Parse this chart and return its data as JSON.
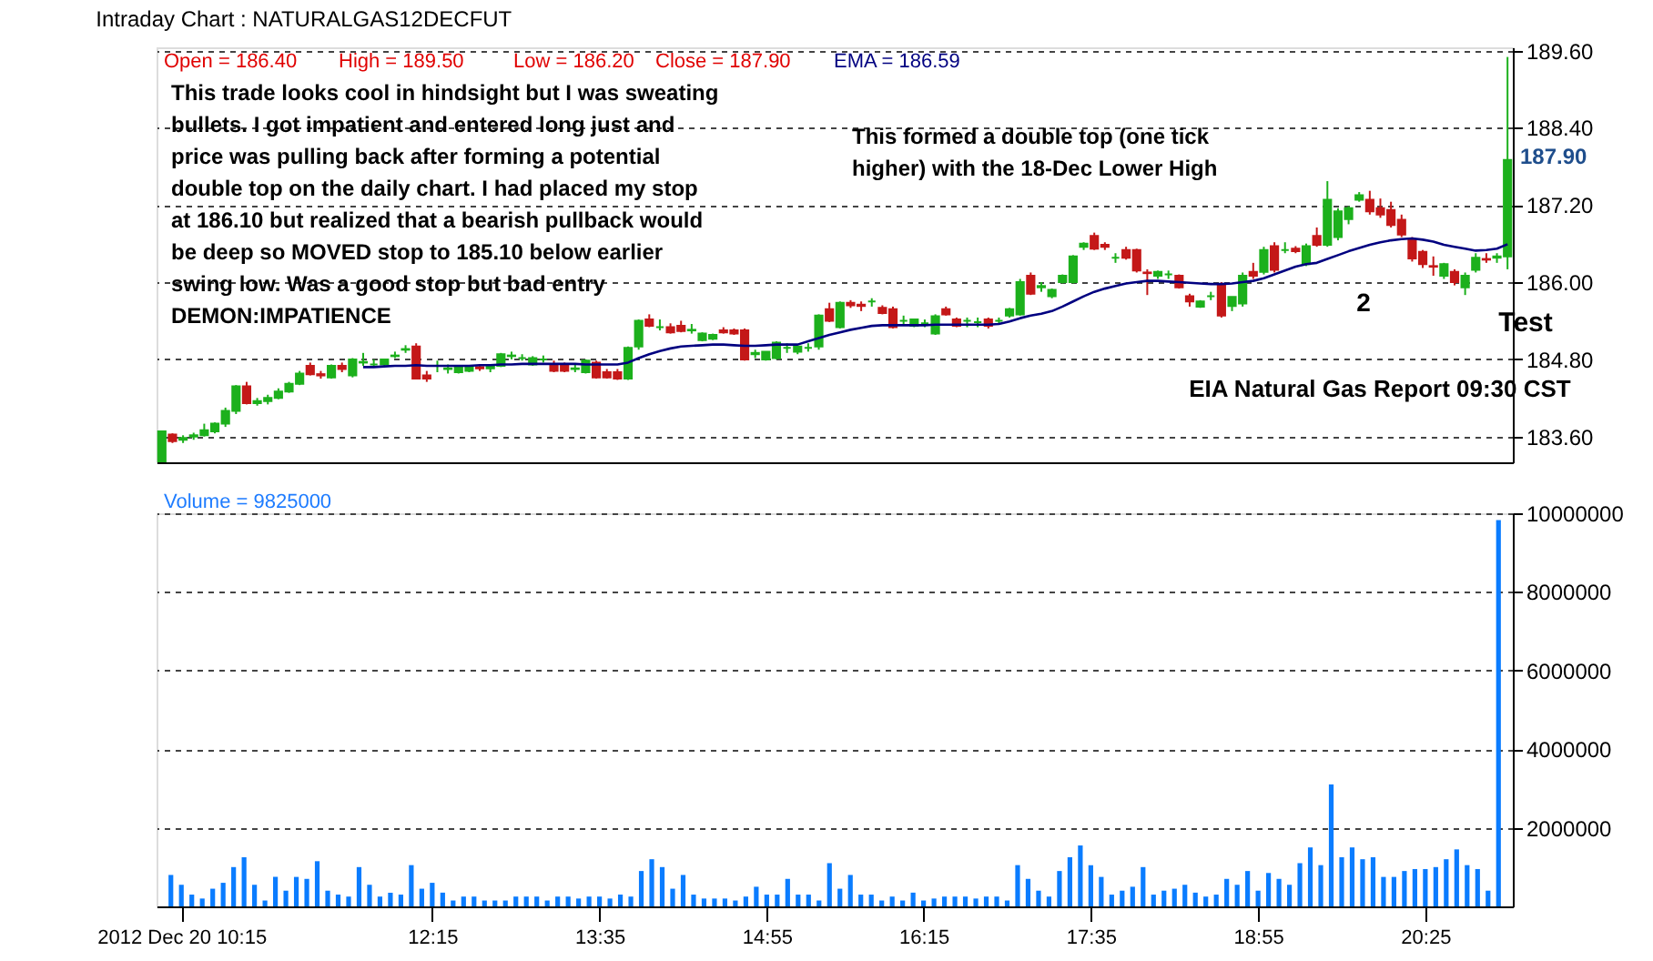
{
  "chart_data": [
    {
      "type": "candlestick",
      "title": "Intraday Chart : NATURALGAS12DECFUT",
      "ohlc": [
        [
          183.21,
          183.68,
          183.2,
          183.68
        ],
        [
          183.63,
          183.65,
          183.5,
          183.53
        ],
        [
          183.55,
          183.62,
          183.5,
          183.58
        ],
        [
          183.6,
          183.66,
          183.55,
          183.62
        ],
        [
          183.62,
          183.8,
          183.6,
          183.7
        ],
        [
          183.68,
          183.82,
          183.65,
          183.8
        ],
        [
          183.8,
          184.05,
          183.75,
          184.0
        ],
        [
          184.0,
          184.4,
          183.95,
          184.38
        ],
        [
          184.38,
          184.45,
          184.1,
          184.12
        ],
        [
          184.12,
          184.2,
          184.08,
          184.15
        ],
        [
          184.15,
          184.25,
          184.1,
          184.2
        ],
        [
          184.2,
          184.35,
          184.18,
          184.3
        ],
        [
          184.3,
          184.45,
          184.28,
          184.42
        ],
        [
          184.42,
          184.62,
          184.4,
          184.58
        ],
        [
          184.7,
          184.75,
          184.55,
          184.57
        ],
        [
          184.57,
          184.62,
          184.5,
          184.55
        ],
        [
          184.52,
          184.72,
          184.5,
          184.7
        ],
        [
          184.7,
          184.75,
          184.6,
          184.65
        ],
        [
          184.55,
          184.82,
          184.52,
          184.8
        ],
        [
          184.75,
          184.9,
          184.7,
          184.76
        ],
        [
          184.72,
          184.8,
          184.68,
          184.72
        ],
        [
          184.72,
          184.8,
          184.7,
          184.8
        ],
        [
          184.85,
          184.92,
          184.82,
          184.86
        ],
        [
          184.95,
          185.02,
          184.9,
          184.96
        ],
        [
          185.0,
          185.05,
          184.5,
          184.5
        ],
        [
          184.55,
          184.62,
          184.45,
          184.5
        ],
        [
          184.7,
          184.78,
          184.6,
          184.7
        ],
        [
          184.65,
          184.72,
          184.58,
          184.66
        ],
        [
          184.6,
          184.7,
          184.58,
          184.68
        ],
        [
          184.62,
          184.7,
          184.6,
          184.7
        ],
        [
          184.68,
          184.72,
          184.62,
          184.66
        ],
        [
          184.66,
          184.72,
          184.6,
          184.7
        ],
        [
          184.7,
          184.9,
          184.68,
          184.88
        ],
        [
          184.85,
          184.92,
          184.8,
          184.86
        ],
        [
          184.82,
          184.88,
          184.78,
          184.82
        ],
        [
          184.72,
          184.85,
          184.7,
          184.82
        ],
        [
          184.8,
          184.86,
          184.75,
          184.8
        ],
        [
          184.72,
          184.78,
          184.6,
          184.62
        ],
        [
          184.7,
          184.75,
          184.6,
          184.62
        ],
        [
          184.65,
          184.72,
          184.6,
          184.66
        ],
        [
          184.6,
          184.8,
          184.58,
          184.78
        ],
        [
          184.75,
          184.78,
          184.5,
          184.52
        ],
        [
          184.6,
          184.65,
          184.5,
          184.52
        ],
        [
          184.6,
          184.65,
          184.48,
          184.5
        ],
        [
          184.5,
          185.0,
          184.48,
          184.98
        ],
        [
          185.0,
          185.42,
          184.95,
          185.4
        ],
        [
          185.42,
          185.5,
          185.3,
          185.32
        ],
        [
          185.3,
          185.42,
          185.25,
          185.3
        ],
        [
          185.3,
          185.36,
          185.2,
          185.22
        ],
        [
          185.32,
          185.4,
          185.22,
          185.24
        ],
        [
          185.25,
          185.35,
          185.2,
          185.26
        ],
        [
          185.1,
          185.22,
          185.08,
          185.2
        ],
        [
          185.12,
          185.2,
          185.1,
          185.18
        ],
        [
          185.25,
          185.3,
          185.2,
          185.22
        ],
        [
          185.25,
          185.28,
          185.18,
          185.2
        ],
        [
          185.25,
          185.28,
          184.78,
          184.8
        ],
        [
          184.88,
          184.95,
          184.82,
          184.9
        ],
        [
          184.8,
          184.92,
          184.78,
          184.92
        ],
        [
          184.82,
          185.08,
          184.8,
          185.06
        ],
        [
          184.98,
          185.05,
          184.9,
          184.98
        ],
        [
          184.92,
          185.02,
          184.88,
          185.0
        ],
        [
          184.98,
          185.05,
          184.92,
          184.98
        ],
        [
          185.0,
          185.5,
          184.95,
          185.48
        ],
        [
          185.58,
          185.68,
          185.38,
          185.4
        ],
        [
          185.3,
          185.7,
          185.28,
          185.68
        ],
        [
          185.68,
          185.72,
          185.6,
          185.64
        ],
        [
          185.65,
          185.7,
          185.55,
          185.63
        ],
        [
          185.7,
          185.75,
          185.62,
          185.7
        ],
        [
          185.6,
          185.64,
          185.5,
          185.52
        ],
        [
          185.58,
          185.62,
          185.28,
          185.3
        ],
        [
          185.4,
          185.48,
          185.35,
          185.4
        ],
        [
          185.32,
          185.42,
          185.3,
          185.42
        ],
        [
          185.36,
          185.42,
          185.3,
          185.36
        ],
        [
          185.2,
          185.5,
          185.18,
          185.47
        ],
        [
          185.58,
          185.62,
          185.48,
          185.5
        ],
        [
          185.42,
          185.45,
          185.3,
          185.32
        ],
        [
          185.4,
          185.45,
          185.3,
          185.4
        ],
        [
          185.38,
          185.45,
          185.3,
          185.38
        ],
        [
          185.42,
          185.45,
          185.28,
          185.32
        ],
        [
          185.4,
          185.45,
          185.35,
          185.4
        ],
        [
          185.48,
          185.6,
          185.45,
          185.58
        ],
        [
          185.5,
          186.05,
          185.48,
          186.0
        ],
        [
          186.1,
          186.15,
          185.8,
          185.82
        ],
        [
          185.92,
          186.0,
          185.85,
          185.94
        ],
        [
          185.78,
          185.9,
          185.75,
          185.88
        ],
        [
          186.0,
          186.12,
          185.98,
          186.1
        ],
        [
          186.0,
          186.42,
          185.98,
          186.4
        ],
        [
          186.55,
          186.62,
          186.5,
          186.6
        ],
        [
          186.72,
          186.77,
          186.5,
          186.52
        ],
        [
          186.58,
          186.62,
          186.5,
          186.55
        ],
        [
          186.38,
          186.45,
          186.3,
          186.38
        ],
        [
          186.5,
          186.55,
          186.35,
          186.38
        ],
        [
          186.5,
          186.52,
          186.15,
          186.18
        ],
        [
          186.15,
          186.2,
          185.8,
          186.14
        ],
        [
          186.1,
          186.18,
          186.05,
          186.16
        ],
        [
          186.12,
          186.18,
          186.05,
          186.12
        ],
        [
          186.1,
          186.12,
          185.9,
          185.92
        ],
        [
          185.78,
          185.82,
          185.62,
          185.7
        ],
        [
          185.62,
          185.72,
          185.6,
          185.7
        ],
        [
          185.78,
          185.85,
          185.72,
          185.78
        ],
        [
          185.95,
          186.0,
          185.45,
          185.48
        ],
        [
          185.63,
          185.77,
          185.55,
          185.77
        ],
        [
          185.67,
          186.15,
          185.62,
          186.1
        ],
        [
          186.16,
          186.3,
          186.05,
          186.1
        ],
        [
          186.16,
          186.55,
          186.12,
          186.5
        ],
        [
          186.56,
          186.62,
          186.15,
          186.19
        ],
        [
          186.5,
          186.62,
          186.45,
          186.5
        ],
        [
          186.52,
          186.56,
          186.45,
          186.48
        ],
        [
          186.28,
          186.6,
          186.25,
          186.56
        ],
        [
          186.72,
          186.85,
          186.55,
          186.58
        ],
        [
          186.58,
          187.57,
          186.55,
          187.28
        ],
        [
          186.7,
          187.15,
          186.65,
          187.1
        ],
        [
          186.98,
          187.18,
          186.9,
          187.15
        ],
        [
          187.28,
          187.4,
          187.25,
          187.35
        ],
        [
          187.28,
          187.42,
          187.05,
          187.1
        ],
        [
          187.15,
          187.3,
          187.0,
          187.05
        ],
        [
          187.12,
          187.25,
          186.85,
          186.89
        ],
        [
          186.97,
          187.05,
          186.7,
          186.74
        ],
        [
          186.65,
          186.7,
          186.32,
          186.37
        ],
        [
          186.47,
          186.5,
          186.22,
          186.28
        ],
        [
          186.25,
          186.4,
          186.1,
          186.24
        ],
        [
          186.1,
          186.3,
          186.05,
          186.28
        ],
        [
          186.16,
          186.2,
          185.95,
          186.0
        ],
        [
          185.92,
          186.15,
          185.8,
          186.1
        ],
        [
          186.19,
          186.45,
          186.15,
          186.38
        ],
        [
          186.35,
          186.45,
          186.3,
          186.36
        ],
        [
          186.38,
          186.45,
          186.3,
          186.4
        ],
        [
          186.4,
          189.5,
          186.2,
          187.9
        ]
      ],
      "colors": [
        "#1cb01c",
        "#c41818",
        "#1cb01c",
        "#1cb01c",
        "#1cb01c",
        "#1cb01c",
        "#1cb01c",
        "#1cb01c",
        "#c41818",
        "#1cb01c",
        "#1cb01c",
        "#1cb01c",
        "#1cb01c",
        "#1cb01c",
        "#c41818",
        "#c41818",
        "#1cb01c",
        "#c41818",
        "#1cb01c",
        "#1cb01c",
        "#1cb01c",
        "#1cb01c",
        "#1cb01c",
        "#1cb01c",
        "#c41818",
        "#c41818",
        "#1cb01c",
        "#1cb01c",
        "#1cb01c",
        "#1cb01c",
        "#c41818",
        "#1cb01c",
        "#1cb01c",
        "#1cb01c",
        "#1cb01c",
        "#1cb01c",
        "#1cb01c",
        "#c41818",
        "#c41818",
        "#1cb01c",
        "#1cb01c",
        "#c41818",
        "#c41818",
        "#c41818",
        "#1cb01c",
        "#1cb01c",
        "#c41818",
        "#1cb01c",
        "#c41818",
        "#c41818",
        "#1cb01c",
        "#1cb01c",
        "#1cb01c",
        "#c41818",
        "#c41818",
        "#c41818",
        "#1cb01c",
        "#1cb01c",
        "#1cb01c",
        "#1cb01c",
        "#1cb01c",
        "#1cb01c",
        "#1cb01c",
        "#c41818",
        "#1cb01c",
        "#c41818",
        "#c41818",
        "#1cb01c",
        "#c41818",
        "#c41818",
        "#1cb01c",
        "#1cb01c",
        "#1cb01c",
        "#1cb01c",
        "#c41818",
        "#c41818",
        "#1cb01c",
        "#1cb01c",
        "#c41818",
        "#1cb01c",
        "#1cb01c",
        "#1cb01c",
        "#c41818",
        "#1cb01c",
        "#1cb01c",
        "#1cb01c",
        "#1cb01c",
        "#1cb01c",
        "#c41818",
        "#c41818",
        "#1cb01c",
        "#c41818",
        "#c41818",
        "#c41818",
        "#1cb01c",
        "#1cb01c",
        "#c41818",
        "#c41818",
        "#1cb01c",
        "#1cb01c",
        "#c41818",
        "#1cb01c",
        "#1cb01c",
        "#c41818",
        "#1cb01c",
        "#c41818",
        "#1cb01c",
        "#c41818",
        "#1cb01c",
        "#c41818",
        "#1cb01c",
        "#1cb01c",
        "#1cb01c",
        "#1cb01c",
        "#c41818",
        "#c41818",
        "#c41818",
        "#c41818",
        "#c41818",
        "#c41818",
        "#c41818",
        "#1cb01c",
        "#c41818",
        "#1cb01c",
        "#1cb01c",
        "#c41818",
        "#1cb01c",
        "#1cb01c"
      ],
      "series": [
        {
          "type": "line",
          "color": "#000080",
          "values": [
            null,
            null,
            null,
            null,
            null,
            null,
            null,
            null,
            null,
            null,
            null,
            null,
            null,
            null,
            null,
            null,
            null,
            null,
            null,
            184.68,
            184.68,
            184.69,
            184.7,
            184.7,
            184.71,
            184.7,
            184.7,
            184.7,
            184.7,
            184.7,
            184.71,
            184.71,
            184.72,
            184.72,
            184.73,
            184.73,
            184.73,
            184.73,
            184.73,
            184.73,
            184.72,
            184.72,
            184.72,
            184.72,
            184.75,
            184.82,
            184.88,
            184.93,
            184.97,
            185.0,
            185.01,
            185.02,
            185.03,
            185.03,
            185.02,
            185.01,
            185.01,
            185.02,
            185.03,
            185.03,
            185.03,
            185.08,
            185.13,
            185.18,
            185.22,
            185.26,
            185.29,
            185.32,
            185.33,
            185.33,
            185.33,
            185.33,
            185.33,
            185.34,
            185.34,
            185.34,
            185.34,
            185.34,
            185.34,
            185.35,
            185.39,
            185.44,
            185.48,
            185.51,
            185.55,
            185.62,
            185.7,
            185.78,
            185.85,
            185.9,
            185.94,
            185.98,
            186.0,
            186.02,
            186.02,
            186.01,
            186.0,
            185.99,
            185.98,
            185.97,
            185.97,
            185.98,
            186.0,
            186.02,
            186.06,
            186.12,
            186.18,
            186.24,
            186.28,
            186.3,
            186.36,
            186.42,
            186.48,
            186.53,
            186.58,
            186.62,
            186.65,
            186.67,
            186.68,
            186.66,
            186.63,
            186.58,
            186.55,
            186.52,
            186.49,
            186.5,
            186.52,
            186.59
          ]
        }
      ],
      "ylim": [
        183.2,
        189.65
      ],
      "yticks": [
        {
          "value": 183.6,
          "label": "183.60"
        },
        {
          "value": 184.8,
          "label": "184.80"
        },
        {
          "value": 186,
          "label": "186.00"
        },
        {
          "value": 187.2,
          "label": "187.20"
        },
        {
          "value": 188.4,
          "label": "188.40"
        },
        {
          "value": 189.6,
          "label": "189.60"
        }
      ],
      "grid": "y",
      "tick_labels": "y",
      "annotations": [
        "Open = 186.40",
        "High = 189.50",
        "Low = 186.20",
        "Close = 187.90",
        "EMA = 186.59",
        "This trade looks cool in hindsight but I was sweating\nbullets. I got impatient and entered long just and\nprice was pulling back after forming a potential\ndouble top on the daily chart. I had placed my stop\nat 186.10 but realized that a bearish pullback would\nbe deep so MOVED stop to 185.10 below earlier\nswing low. Was a good stop but bad entry\nDEMON:IMPATIENCE",
        "This formed a double top (one tick\nhigher) with the 18-Dec Lower High",
        "2",
        "Test",
        "EIA Natural Gas Report 09:30 CST",
        "187.90"
      ]
    },
    {
      "type": "bar",
      "categories": [
        null,
        "2012 Dec 20 10:15",
        null,
        null,
        null,
        null,
        null,
        null,
        null,
        null,
        null,
        null,
        null,
        null,
        null,
        null,
        null,
        null,
        null,
        null,
        null,
        null,
        null,
        null,
        null,
        "12:15",
        null,
        null,
        null,
        null,
        null,
        null,
        null,
        null,
        null,
        null,
        null,
        null,
        null,
        null,
        null,
        "13:35",
        null,
        null,
        null,
        null,
        null,
        null,
        null,
        null,
        null,
        null,
        null,
        null,
        null,
        null,
        null,
        "14:55",
        null,
        null,
        null,
        null,
        null,
        null,
        null,
        null,
        null,
        null,
        null,
        null,
        null,
        null,
        "16:15",
        null,
        null,
        null,
        null,
        null,
        null,
        null,
        null,
        null,
        null,
        null,
        null,
        null,
        null,
        null,
        "17:35",
        null,
        null,
        null,
        null,
        null,
        null,
        null,
        null,
        null,
        null,
        null,
        null,
        null,
        null,
        null,
        "18:55",
        null,
        null,
        null,
        null,
        null,
        null,
        null,
        null,
        null,
        null,
        null,
        null,
        null,
        null,
        null,
        "20:25",
        null,
        null,
        null,
        null,
        null,
        null,
        null
      ],
      "series": [
        {
          "color": "#0a7cff",
          "values": [
            800000,
            550000,
            300000,
            200000,
            450000,
            600000,
            1000000,
            1250000,
            550000,
            150000,
            750000,
            400000,
            750000,
            700000,
            1150000,
            400000,
            300000,
            250000,
            1000000,
            550000,
            250000,
            350000,
            300000,
            1050000,
            450000,
            600000,
            350000,
            150000,
            250000,
            250000,
            150000,
            150000,
            150000,
            250000,
            250000,
            250000,
            150000,
            250000,
            250000,
            200000,
            250000,
            250000,
            200000,
            300000,
            250000,
            900000,
            1200000,
            1000000,
            450000,
            800000,
            300000,
            200000,
            200000,
            200000,
            150000,
            250000,
            500000,
            300000,
            300000,
            700000,
            300000,
            300000,
            150000,
            1100000,
            450000,
            800000,
            300000,
            300000,
            150000,
            250000,
            150000,
            350000,
            150000,
            200000,
            250000,
            250000,
            250000,
            200000,
            250000,
            250000,
            150000,
            1050000,
            700000,
            400000,
            250000,
            900000,
            1250000,
            1550000,
            1050000,
            750000,
            300000,
            400000,
            500000,
            1000000,
            300000,
            400000,
            450000,
            550000,
            350000,
            250000,
            300000,
            700000,
            550000,
            900000,
            400000,
            850000,
            700000,
            550000,
            1100000,
            1500000,
            1050000,
            3100000,
            1250000,
            1500000,
            1200000,
            1250000,
            750000,
            750000,
            900000,
            950000,
            950000,
            1000000,
            1200000,
            1450000,
            1050000,
            950000,
            400000,
            9825000
          ]
        }
      ],
      "ylim": [
        0,
        10000000
      ],
      "yticks": [
        2000000,
        4000000,
        6000000,
        8000000,
        10000000
      ],
      "grid": "y",
      "annotations": [
        "Volume = 9825000"
      ]
    }
  ]
}
